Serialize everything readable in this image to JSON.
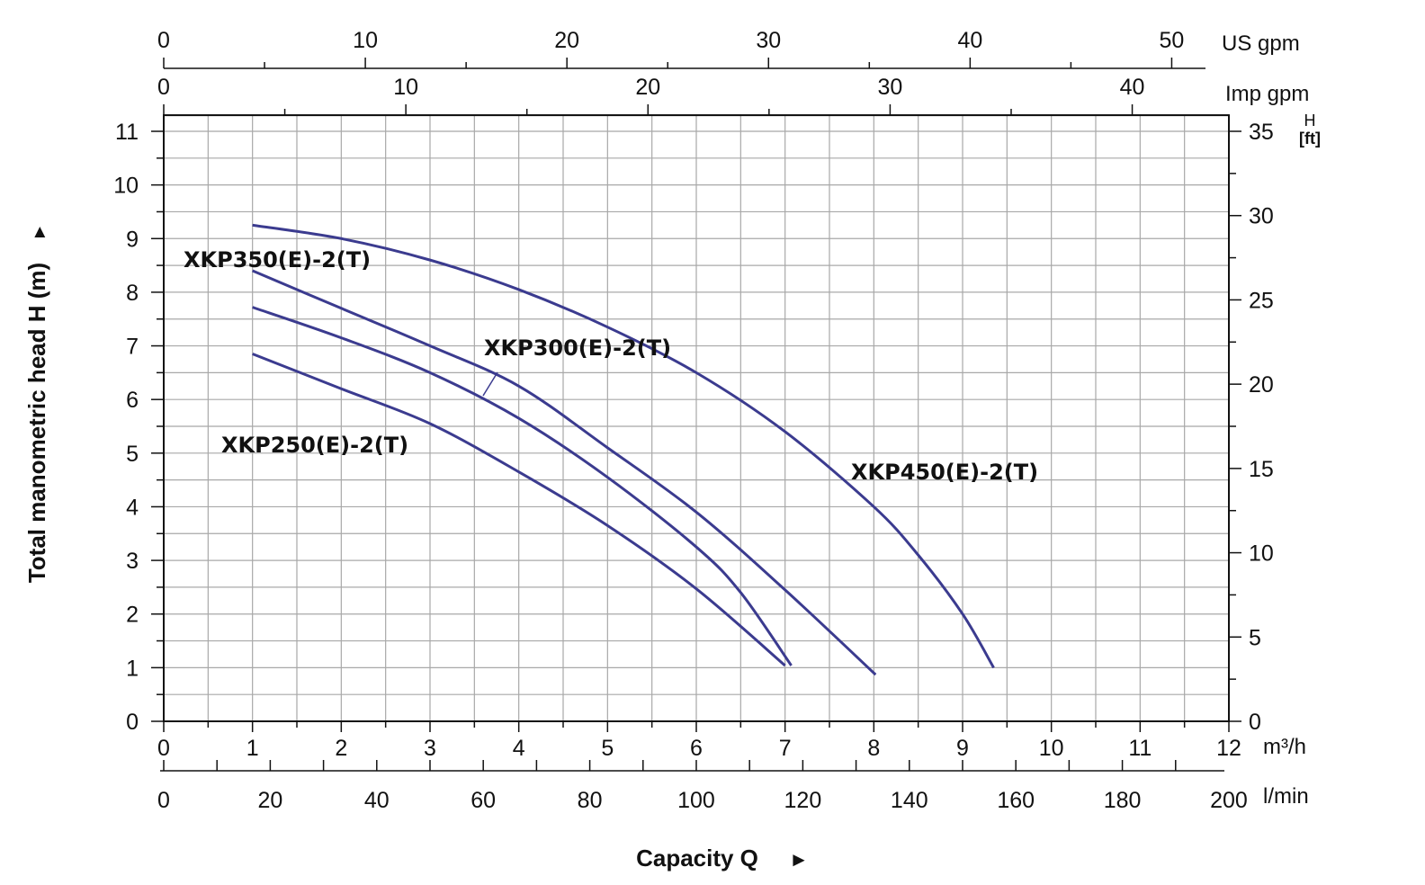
{
  "chart_data": {
    "type": "line",
    "title": "",
    "xlabel": "Capacity Q",
    "xlabel_arrow": "►",
    "ylabel": "Total manometric head H (m)",
    "ylabel_arrow": "►",
    "x_unit": "m³/h",
    "xlim": [
      0,
      12
    ],
    "ylim": [
      0,
      11.3
    ],
    "grid": true,
    "x_ticks": [
      0,
      1,
      2,
      3,
      4,
      5,
      6,
      7,
      8,
      9,
      10,
      11,
      12
    ],
    "y_ticks": [
      0,
      1,
      2,
      3,
      4,
      5,
      6,
      7,
      8,
      9,
      10,
      11
    ],
    "secondary_axes": {
      "us_gpm": {
        "label": "US gpm",
        "ticks": [
          0,
          10,
          20,
          30,
          40,
          50
        ],
        "per_m3h": 4.403
      },
      "imp_gpm": {
        "label": "Imp gpm",
        "ticks": [
          0,
          10,
          20,
          30,
          40
        ],
        "per_m3h": 3.666
      },
      "l_min": {
        "label": "l/min",
        "ticks": [
          0,
          20,
          40,
          60,
          80,
          100,
          120,
          140,
          160,
          180,
          200
        ],
        "per_m3h": 16.667
      },
      "h_ft": {
        "label_top": "H",
        "label_bottom": "[ft]",
        "ticks": [
          0,
          5,
          10,
          15,
          20,
          25,
          30,
          35
        ],
        "ft_at_11m": 35
      }
    },
    "series_color": "#3b3b8f",
    "series": [
      {
        "name": "XKP450(E)-2(T)",
        "x": [
          1,
          2,
          3,
          4,
          5,
          6,
          7,
          8,
          8.5,
          9,
          9.35
        ],
        "y": [
          9.25,
          9.0,
          8.6,
          8.05,
          7.35,
          6.5,
          5.4,
          4.0,
          3.1,
          2.0,
          1.0
        ]
      },
      {
        "name": "XKP350(E)-2(T)",
        "x": [
          1,
          2,
          3,
          4,
          5,
          6,
          7,
          8.02
        ],
        "y": [
          8.4,
          7.7,
          7.0,
          6.25,
          5.1,
          3.9,
          2.45,
          0.87
        ]
      },
      {
        "name": "XKP300(E)-2(T)",
        "x": [
          1,
          2,
          3,
          4,
          5,
          6,
          6.5,
          7.07
        ],
        "y": [
          7.72,
          7.15,
          6.5,
          5.65,
          4.55,
          3.25,
          2.4,
          1.04
        ]
      },
      {
        "name": "XKP250(E)-2(T)",
        "x": [
          1,
          2,
          3,
          4,
          5,
          6,
          7.0
        ],
        "y": [
          6.85,
          6.2,
          5.55,
          4.65,
          3.65,
          2.47,
          1.04
        ]
      }
    ]
  }
}
